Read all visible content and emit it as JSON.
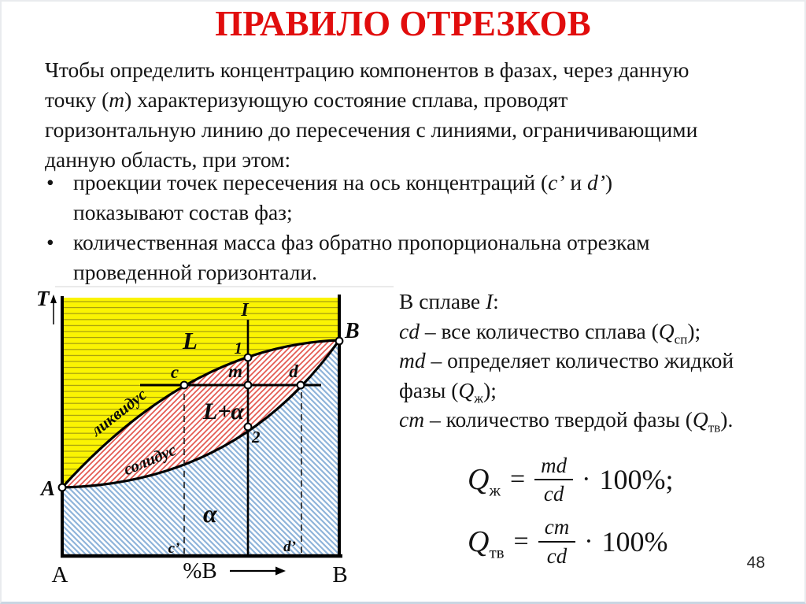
{
  "slide": {
    "title": "ПРАВИЛО ОТРЕЗКОВ",
    "title_color": "#e10d0d",
    "page_number": "48",
    "bullet_char": "•"
  },
  "intro": {
    "lines": [
      [
        {
          "t": "Чтобы определить концентрацию компонентов в фазах, через данную"
        }
      ],
      [
        {
          "t": "точку ("
        },
        {
          "t": "m",
          "i": true
        },
        {
          "t": ") характеризующую состояние сплава, проводят"
        }
      ],
      [
        {
          "t": "горизонтальную линию до пересечения с линиями,  ограничивающими"
        }
      ],
      [
        {
          "t": "данную область, при этом:"
        }
      ]
    ]
  },
  "bullets": [
    {
      "lines": [
        [
          {
            "t": "проекции точек пересечения на ось концентраций ("
          },
          {
            "t": "c’",
            "i": true
          },
          {
            "t": " и "
          },
          {
            "t": "d’",
            "i": true
          },
          {
            "t": ")"
          }
        ],
        [
          {
            "t": "показывают состав фаз;"
          }
        ]
      ]
    },
    {
      "lines": [
        [
          {
            "t": "количественная масса фаз обратно пропорциональна отрезкам"
          }
        ],
        [
          {
            "t": "проведенной горизонтали."
          }
        ]
      ]
    }
  ],
  "legend": {
    "lines": [
      [
        {
          "t": "В сплаве "
        },
        {
          "t": "I",
          "i": true
        },
        {
          "t": ":"
        }
      ],
      [
        {
          "t": "cd",
          "i": true
        },
        {
          "t": " – все количество сплава ("
        },
        {
          "t": "Q",
          "i": true
        },
        {
          "t": "сп",
          "sub": true
        },
        {
          "t": ");"
        }
      ],
      [
        {
          "t": "md",
          "i": true
        },
        {
          "t": " – определяет количество жидкой"
        }
      ],
      [
        {
          "t": "фазы ("
        },
        {
          "t": "Q",
          "i": true
        },
        {
          "t": "ж",
          "sub": true
        },
        {
          "t": ");"
        }
      ],
      [
        {
          "t": "cm",
          "i": true
        },
        {
          "t": " – количество твердой фазы ("
        },
        {
          "t": "Q",
          "i": true
        },
        {
          "t": "тв",
          "sub": true
        },
        {
          "t": ")."
        }
      ]
    ]
  },
  "formulas": {
    "liquid": {
      "q": "Q",
      "sub": "ж",
      "eq": "=",
      "num": "md",
      "den": "cd",
      "dot": "·",
      "rest": "100%;"
    },
    "solid": {
      "q": "Q",
      "sub": "тв",
      "eq": "=",
      "num": "cm",
      "den": "cd",
      "dot": "·",
      "rest": "100%"
    }
  },
  "diagram": {
    "labels": {
      "t_axis": "T",
      "alloy_line": "I",
      "liquid_region": "L",
      "two_phase_region": "L+α",
      "alpha_region": "α",
      "liquidus": "ликвидус",
      "solidus": "солидус",
      "point_a": "A",
      "point_b": "B",
      "p1": "1",
      "p2": "2",
      "pc": "c",
      "pm": "m",
      "pd": "d",
      "pc_prime": "c’",
      "pd_prime": "d’",
      "axis_a": "A",
      "axis_b": "B",
      "axis_x": "%B"
    },
    "colors": {
      "liquid_fill": "#fbf402",
      "liquid_hatch": "#a39b10",
      "red_hatch": "#e4584f",
      "blue_hatch": "#8fb4da",
      "liquidus_label": "#e8231c",
      "solidus_label": "#2d62b8",
      "line": "#000000"
    }
  }
}
